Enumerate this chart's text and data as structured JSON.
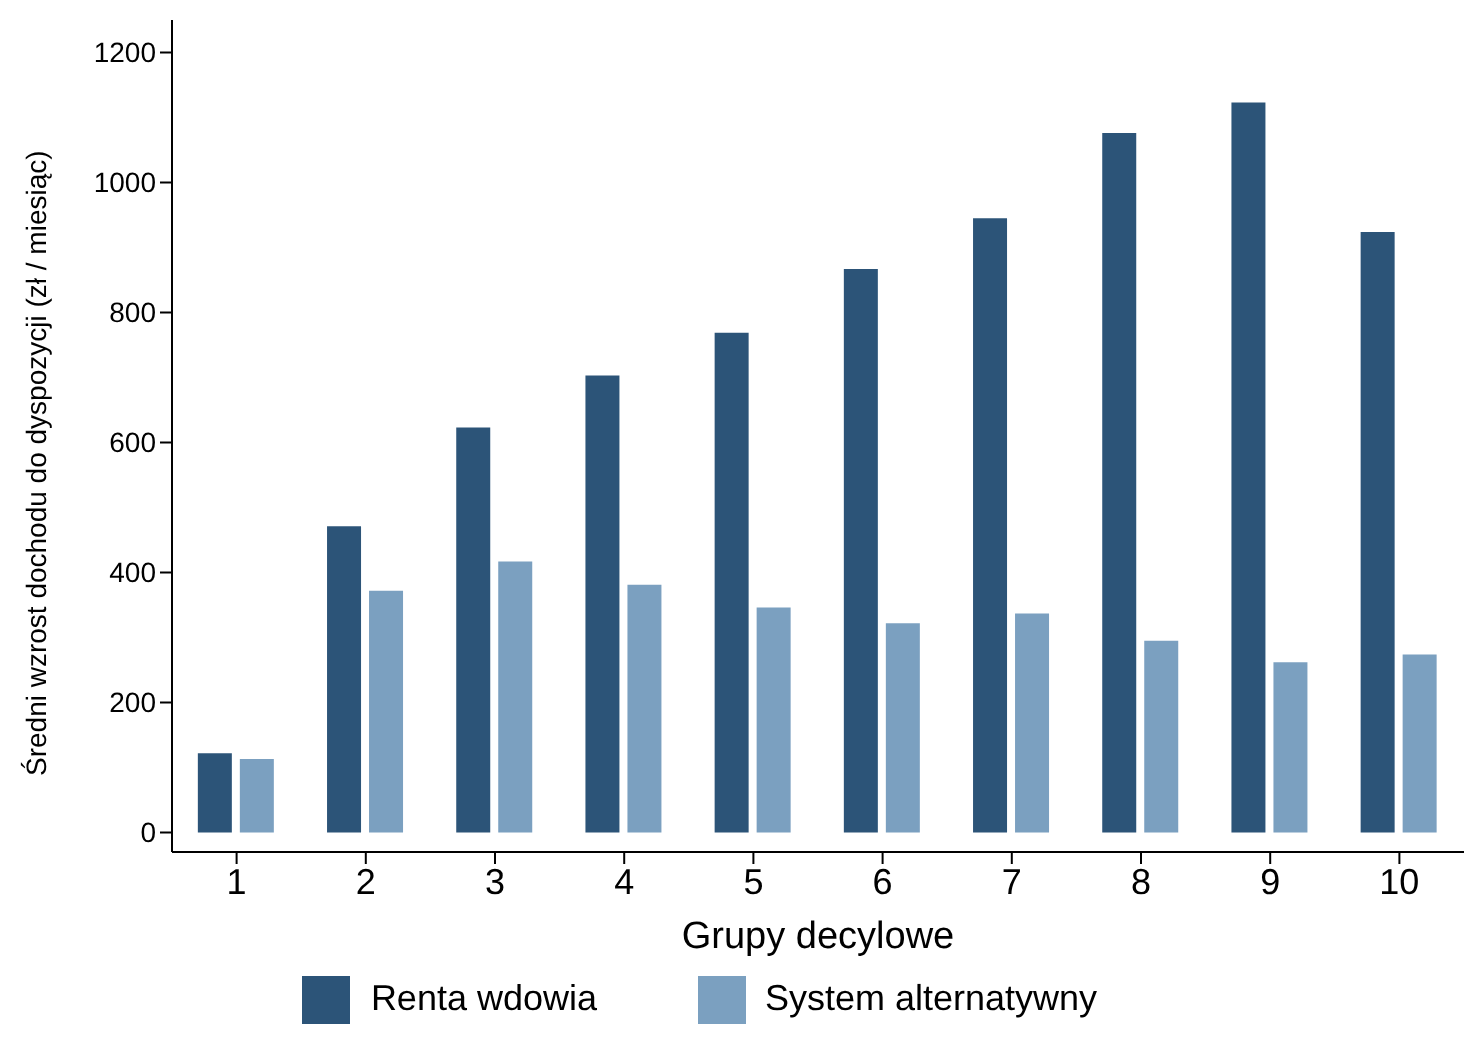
{
  "chart_data": {
    "type": "bar",
    "xlabel": "Grupy decylowe",
    "ylabel": "Średni wzrost dochodu do dyspozycji (zł / miesiąc)",
    "categories": [
      "1",
      "2",
      "3",
      "4",
      "5",
      "6",
      "7",
      "8",
      "9",
      "10"
    ],
    "series": [
      {
        "name": "Renta wdowia",
        "color": "#2c5478",
        "values": [
          122,
          471,
          623,
          703,
          769,
          867,
          945,
          1076,
          1123,
          924
        ]
      },
      {
        "name": "System alternatywny",
        "color": "#7ba0c0",
        "values": [
          113,
          372,
          417,
          381,
          346,
          322,
          337,
          295,
          262,
          274
        ]
      }
    ],
    "ylim": [
      -30,
      1250
    ],
    "yticks": [
      0,
      200,
      400,
      600,
      800,
      1000,
      1200
    ],
    "grid": false,
    "legend": "bottom"
  }
}
